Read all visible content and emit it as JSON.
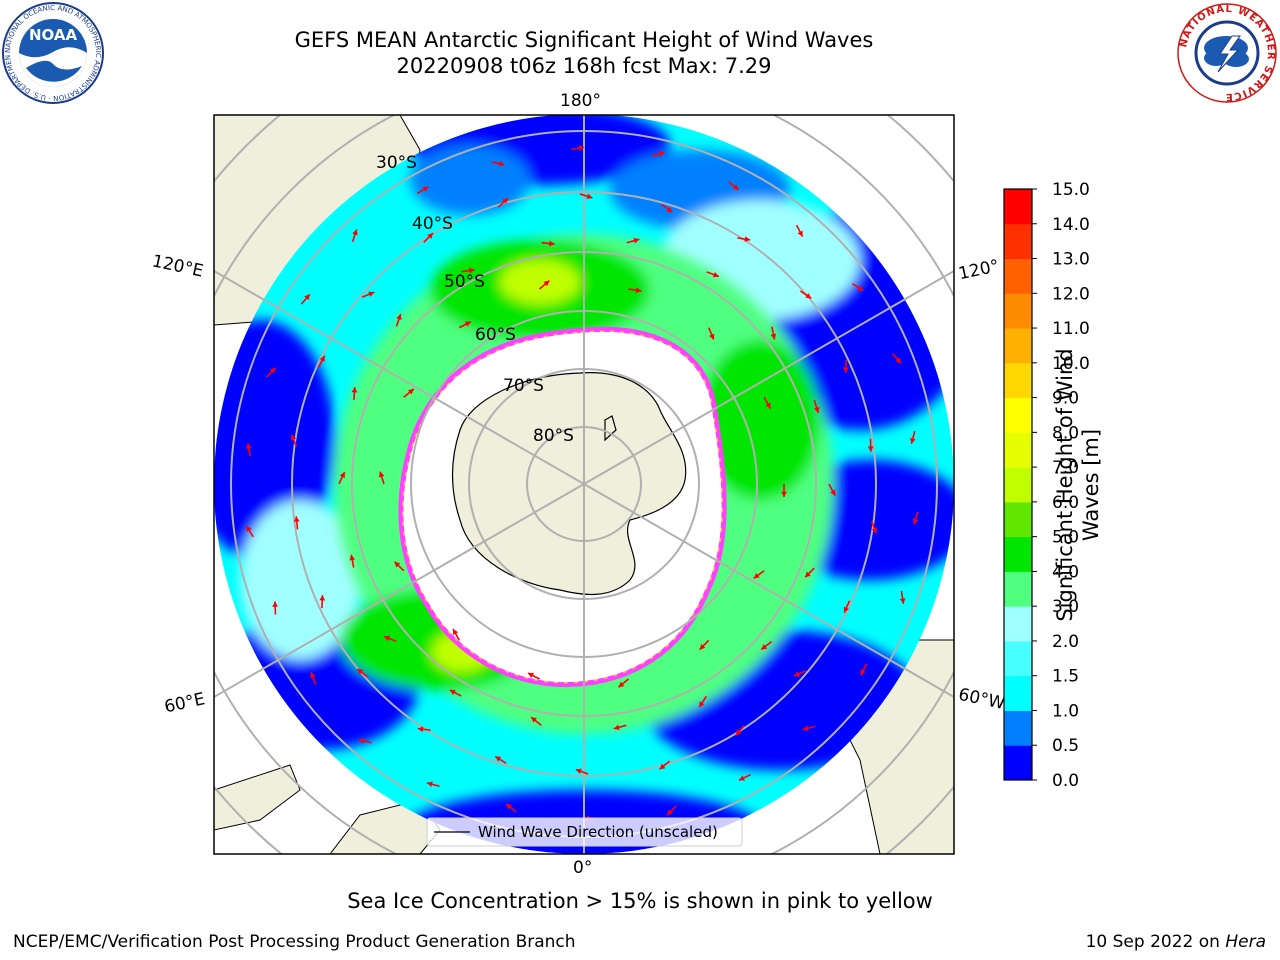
{
  "title": {
    "line1": "GEFS MEAN Antarctic Significant Height of Wind Waves",
    "line2": "20220908 t06z 168h fcst   Max: 7.29"
  },
  "logos": {
    "left": "NOAA",
    "left_ring": "NATIONAL OCEANIC AND ATMOSPHERIC ADMINISTRATION · U.S. DEPARTMENT OF COMMERCE ·",
    "right_ring": "NATIONAL WEATHER SERVICE"
  },
  "map": {
    "longitude_labels": [
      "180°",
      "120°E",
      "120°",
      "60°E",
      "60°W",
      "0°"
    ],
    "latitude_labels": [
      "30°S",
      "40°S",
      "50°S",
      "60°S",
      "70°S",
      "80°S"
    ],
    "legend_label": "Wind Wave Direction (unscaled)"
  },
  "colorbar": {
    "label": "Significant Height of Wind Waves [m]",
    "ticks": [
      "0.0",
      "0.5",
      "1.0",
      "1.5",
      "2.0",
      "3.0",
      "4.0",
      "5.0",
      "6.0",
      "7.0",
      "8.0",
      "9.0",
      "10.0",
      "11.0",
      "12.0",
      "13.0",
      "14.0",
      "15.0"
    ],
    "colors": [
      "#0000ff",
      "#0080ff",
      "#00ffff",
      "#48ffff",
      "#a0ffff",
      "#50ff80",
      "#00e600",
      "#60e600",
      "#c0ff00",
      "#e6ff00",
      "#ffff00",
      "#ffd700",
      "#ffb000",
      "#ff8c00",
      "#ff6000",
      "#ff3000",
      "#ff0000"
    ]
  },
  "footer": {
    "note": "Sea Ice Concentration > 15% is shown in pink to yellow",
    "left": "NCEP/EMC/Verification Post Processing Product Generation Branch",
    "date": "10 Sep 2022 on",
    "host": "Hera"
  }
}
